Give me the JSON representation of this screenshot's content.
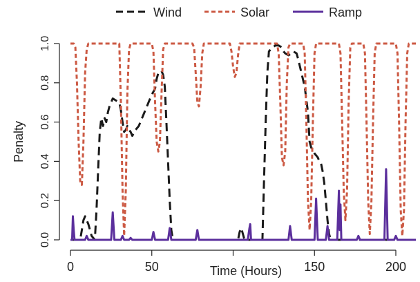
{
  "chart_data": {
    "type": "line",
    "title": "",
    "xlabel": "Time (Hours)",
    "ylabel": "Penalty",
    "xlim": [
      0,
      215
    ],
    "ylim": [
      0,
      1
    ],
    "xticks": [
      0,
      50,
      100,
      150,
      200
    ],
    "xtick_labels": [
      "0",
      "50",
      "",
      "150",
      "200"
    ],
    "yticks": [
      0.0,
      0.2,
      0.4,
      0.6,
      0.8,
      1.0
    ],
    "ytick_labels": [
      "0.0",
      "0.2",
      "0.4",
      "0.6",
      "0.8",
      "1.0"
    ],
    "grid": false,
    "legend_position": "top",
    "series": [
      {
        "name": "Wind",
        "color": "#1a1a1a",
        "dash": "long-dash",
        "points": [
          [
            0,
            0
          ],
          [
            6,
            0
          ],
          [
            7,
            0.05
          ],
          [
            8,
            0.1
          ],
          [
            9,
            0.12
          ],
          [
            10,
            0.1
          ],
          [
            11,
            0.08
          ],
          [
            12,
            0.05
          ],
          [
            13,
            0.02
          ],
          [
            14,
            0.01
          ],
          [
            15,
            0
          ],
          [
            16,
            0.15
          ],
          [
            17,
            0.35
          ],
          [
            18,
            0.55
          ],
          [
            19,
            0.62
          ],
          [
            20,
            0.58
          ],
          [
            21,
            0.62
          ],
          [
            22,
            0.6
          ],
          [
            23,
            0.65
          ],
          [
            24,
            0.68
          ],
          [
            25,
            0.7
          ],
          [
            26,
            0.72
          ],
          [
            28,
            0.71
          ],
          [
            30,
            0.7
          ],
          [
            31,
            0.66
          ],
          [
            32,
            0.6
          ],
          [
            33,
            0.55
          ],
          [
            34,
            0.56
          ],
          [
            35,
            0.58
          ],
          [
            36,
            0.56
          ],
          [
            37,
            0.55
          ],
          [
            38,
            0.53
          ],
          [
            40,
            0.56
          ],
          [
            42,
            0.58
          ],
          [
            44,
            0.62
          ],
          [
            46,
            0.66
          ],
          [
            48,
            0.7
          ],
          [
            50,
            0.74
          ],
          [
            52,
            0.77
          ],
          [
            53,
            0.82
          ],
          [
            54,
            0.85
          ],
          [
            55,
            0.86
          ],
          [
            56,
            0.86
          ],
          [
            57,
            0.84
          ],
          [
            58,
            0.78
          ],
          [
            59,
            0.6
          ],
          [
            60,
            0.4
          ],
          [
            61,
            0.2
          ],
          [
            62,
            0.05
          ],
          [
            63,
            0
          ],
          [
            103,
            0
          ],
          [
            104,
            0.04
          ],
          [
            105,
            0.06
          ],
          [
            106,
            0.03
          ],
          [
            107,
            0
          ],
          [
            118,
            0
          ],
          [
            119,
            0.3
          ],
          [
            120,
            0.6
          ],
          [
            121,
            0.85
          ],
          [
            122,
            0.96
          ],
          [
            123,
            0.97
          ],
          [
            124,
            0.98
          ],
          [
            126,
            0.99
          ],
          [
            128,
            0.99
          ],
          [
            130,
            0.98
          ],
          [
            131,
            0.96
          ],
          [
            132,
            0.95
          ],
          [
            134,
            0.94
          ],
          [
            136,
            0.95
          ],
          [
            137,
            0.96
          ],
          [
            139,
            0.95
          ],
          [
            140,
            0.92
          ],
          [
            142,
            0.85
          ],
          [
            144,
            0.78
          ],
          [
            146,
            0.65
          ],
          [
            147,
            0.5
          ],
          [
            148,
            0.47
          ],
          [
            149,
            0.46
          ],
          [
            150,
            0.44
          ],
          [
            152,
            0.42
          ],
          [
            153,
            0.4
          ],
          [
            154,
            0.39
          ],
          [
            155,
            0.35
          ],
          [
            156,
            0.29
          ],
          [
            157,
            0.2
          ],
          [
            158,
            0.1
          ],
          [
            159,
            0.03
          ],
          [
            160,
            0
          ],
          [
            215,
            0
          ]
        ]
      },
      {
        "name": "Solar",
        "color": "#cc5a44",
        "dash": "short-dash",
        "points": [
          [
            0,
            1
          ],
          [
            2,
            1
          ],
          [
            3,
            0.98
          ],
          [
            4,
            0.8
          ],
          [
            5,
            0.5
          ],
          [
            6,
            0.3
          ],
          [
            7,
            0.28
          ],
          [
            8,
            0.5
          ],
          [
            9,
            0.85
          ],
          [
            10,
            0.97
          ],
          [
            11,
            1
          ],
          [
            30,
            1
          ],
          [
            31,
            0.7
          ],
          [
            32,
            0.25
          ],
          [
            33,
            0.02
          ],
          [
            34,
            0.25
          ],
          [
            35,
            0.75
          ],
          [
            36,
            0.97
          ],
          [
            37,
            1
          ],
          [
            50,
            1
          ],
          [
            51,
            0.96
          ],
          [
            52,
            0.7
          ],
          [
            53,
            0.5
          ],
          [
            54,
            0.45
          ],
          [
            55,
            0.5
          ],
          [
            56,
            0.75
          ],
          [
            57,
            0.97
          ],
          [
            58,
            1
          ],
          [
            75,
            1
          ],
          [
            76,
            0.98
          ],
          [
            77,
            0.85
          ],
          [
            78,
            0.7
          ],
          [
            79,
            0.68
          ],
          [
            80,
            0.78
          ],
          [
            81,
            0.95
          ],
          [
            82,
            1
          ],
          [
            98,
            1
          ],
          [
            99,
            0.96
          ],
          [
            100,
            0.88
          ],
          [
            101,
            0.83
          ],
          [
            102,
            0.85
          ],
          [
            103,
            0.94
          ],
          [
            104,
            1
          ],
          [
            127,
            1
          ],
          [
            128,
            0.95
          ],
          [
            129,
            0.7
          ],
          [
            130,
            0.42
          ],
          [
            131,
            0.38
          ],
          [
            132,
            0.45
          ],
          [
            133,
            0.8
          ],
          [
            134,
            0.98
          ],
          [
            135,
            1
          ],
          [
            143,
            1
          ],
          [
            144,
            0.95
          ],
          [
            145,
            0.6
          ],
          [
            146,
            0.2
          ],
          [
            147,
            0.05
          ],
          [
            148,
            0.2
          ],
          [
            149,
            0.6
          ],
          [
            150,
            0.95
          ],
          [
            151,
            1
          ],
          [
            165,
            1
          ],
          [
            166,
            0.95
          ],
          [
            167,
            0.6
          ],
          [
            168,
            0.25
          ],
          [
            169,
            0.1
          ],
          [
            170,
            0.25
          ],
          [
            171,
            0.7
          ],
          [
            172,
            0.98
          ],
          [
            173,
            1
          ],
          [
            180,
            1
          ],
          [
            181,
            0.95
          ],
          [
            182,
            0.6
          ],
          [
            183,
            0.2
          ],
          [
            184,
            0.03
          ],
          [
            185,
            0.2
          ],
          [
            186,
            0.6
          ],
          [
            187,
            0.95
          ],
          [
            188,
            1
          ],
          [
            200,
            1
          ],
          [
            201,
            0.95
          ],
          [
            202,
            0.6
          ],
          [
            203,
            0.15
          ],
          [
            204,
            0.02
          ],
          [
            205,
            0.15
          ],
          [
            206,
            0.6
          ],
          [
            207,
            0.95
          ],
          [
            208,
            1
          ],
          [
            215,
            1
          ]
        ]
      },
      {
        "name": "Ramp",
        "color": "#5b2f9c",
        "dash": "solid",
        "points": [
          [
            0,
            0
          ],
          [
            1,
            0
          ],
          [
            1.5,
            0.12
          ],
          [
            2,
            0.05
          ],
          [
            2.5,
            0
          ],
          [
            9,
            0
          ],
          [
            10,
            0.02
          ],
          [
            11,
            0
          ],
          [
            25,
            0
          ],
          [
            26,
            0.14
          ],
          [
            27,
            0
          ],
          [
            31,
            0
          ],
          [
            32,
            0.02
          ],
          [
            33,
            0
          ],
          [
            36,
            0
          ],
          [
            37,
            0.01
          ],
          [
            38,
            0
          ],
          [
            50,
            0
          ],
          [
            51,
            0.04
          ],
          [
            52,
            0
          ],
          [
            60,
            0
          ],
          [
            61,
            0.06
          ],
          [
            62,
            0
          ],
          [
            77,
            0
          ],
          [
            78,
            0.05
          ],
          [
            79,
            0
          ],
          [
            109,
            0
          ],
          [
            110,
            0.06
          ],
          [
            110.5,
            0.08
          ],
          [
            111,
            0
          ],
          [
            134,
            0
          ],
          [
            135,
            0.07
          ],
          [
            136,
            0
          ],
          [
            150,
            0
          ],
          [
            151,
            0.21
          ],
          [
            152,
            0
          ],
          [
            157,
            0
          ],
          [
            158,
            0.07
          ],
          [
            159,
            0
          ],
          [
            164,
            0
          ],
          [
            165,
            0.25
          ],
          [
            165.5,
            0.05
          ],
          [
            166,
            0.18
          ],
          [
            166.5,
            0
          ],
          [
            176,
            0
          ],
          [
            177,
            0.02
          ],
          [
            178,
            0
          ],
          [
            193,
            0
          ],
          [
            194,
            0.36
          ],
          [
            195,
            0
          ],
          [
            199,
            0
          ],
          [
            200,
            0.02
          ],
          [
            201,
            0
          ],
          [
            215,
            0
          ]
        ]
      }
    ]
  }
}
